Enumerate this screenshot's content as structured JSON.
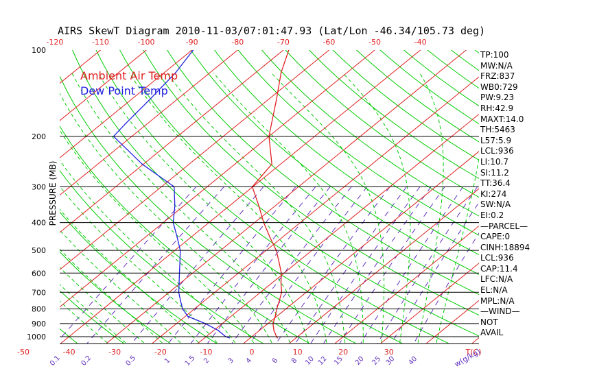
{
  "chart_data": {
    "type": "skewt",
    "title": "AIRS SkewT Diagram 2010-11-03/07:01:47.93 (Lat/Lon -46.34/105.73 deg)",
    "ylabel": "PRESSURE (MB)",
    "x_unit_label": "T(C)",
    "mixing_ratio_unit_label": "w(g/kg)",
    "pressure_ticks": [
      100,
      200,
      300,
      400,
      500,
      600,
      700,
      800,
      900,
      1000
    ],
    "pressure_range": [
      100,
      1050
    ],
    "top_temp_ticks": [
      -120,
      -110,
      -100,
      -90,
      -80,
      -70,
      -60,
      -50,
      -40
    ],
    "bottom_temp_ticks": [
      -50,
      -40,
      -30,
      -20,
      -10,
      0,
      10,
      20,
      30
    ],
    "mixing_ratio_labels": [
      "0.1",
      "0.2",
      "0.5",
      "1",
      "1.5",
      "2",
      "3",
      "4",
      "6",
      "8",
      "10",
      "12",
      "15",
      "20",
      "25",
      "30",
      "40"
    ],
    "legend": [
      {
        "name": "Ambient Air Temp",
        "color": "#e02020"
      },
      {
        "name": "Dew Point Temp",
        "color": "#2020e0"
      }
    ],
    "series": [
      {
        "name": "Ambient Air Temp",
        "color": "#e02020",
        "points": [
          {
            "p": 1010,
            "t": 5.9
          },
          {
            "p": 1000,
            "t": 5.4
          },
          {
            "p": 950,
            "t": 3.1
          },
          {
            "p": 900,
            "t": 1.1
          },
          {
            "p": 850,
            "t": -0.3
          },
          {
            "p": 800,
            "t": -2.0
          },
          {
            "p": 750,
            "t": -3.6
          },
          {
            "p": 700,
            "t": -5.4
          },
          {
            "p": 650,
            "t": -8.0
          },
          {
            "p": 600,
            "t": -10.6
          },
          {
            "p": 550,
            "t": -14.0
          },
          {
            "p": 500,
            "t": -17.8
          },
          {
            "p": 450,
            "t": -22.7
          },
          {
            "p": 400,
            "t": -28.0
          },
          {
            "p": 350,
            "t": -33.5
          },
          {
            "p": 300,
            "t": -40.1
          },
          {
            "p": 250,
            "t": -41.9
          },
          {
            "p": 200,
            "t": -50.0
          },
          {
            "p": 150,
            "t": -58.0
          },
          {
            "p": 120,
            "t": -64.4
          },
          {
            "p": 100,
            "t": -68.8
          }
        ]
      },
      {
        "name": "Dew Point Temp",
        "color": "#2020e0",
        "points": [
          {
            "p": 1010,
            "t": -4.6
          },
          {
            "p": 1000,
            "t": -5.7
          },
          {
            "p": 950,
            "t": -9.1
          },
          {
            "p": 900,
            "t": -13.7
          },
          {
            "p": 850,
            "t": -19.4
          },
          {
            "p": 800,
            "t": -22.6
          },
          {
            "p": 750,
            "t": -25.2
          },
          {
            "p": 700,
            "t": -27.9
          },
          {
            "p": 650,
            "t": -30.3
          },
          {
            "p": 600,
            "t": -32.9
          },
          {
            "p": 550,
            "t": -35.7
          },
          {
            "p": 500,
            "t": -38.8
          },
          {
            "p": 450,
            "t": -43.0
          },
          {
            "p": 400,
            "t": -47.8
          },
          {
            "p": 350,
            "t": -51.9
          },
          {
            "p": 300,
            "t": -57.2
          },
          {
            "p": 250,
            "t": -70.3
          },
          {
            "p": 200,
            "t": -84.0
          },
          {
            "p": 180,
            "t": -84.8
          },
          {
            "p": 150,
            "t": -85.9
          },
          {
            "p": 120,
            "t": -87.5
          },
          {
            "p": 100,
            "t": -89.7
          }
        ]
      }
    ],
    "stats": [
      "TP:100",
      "MW:N/A",
      "FRZ:837",
      "WB0:729",
      "PW:9.23",
      "RH:42.9",
      "MAXT:14.0",
      "TH:5463",
      "L57:5.9",
      "LCL:936",
      "LI:10.7",
      "SI:11.2",
      "TT:36.4",
      "KI:274",
      "SW:N/A",
      "EI:0.2",
      "—PARCEL—",
      "CAPE:0",
      "CINH:18894",
      "LCL:936",
      "CAP:11.4",
      "LFC:N/A",
      "EL:N/A",
      "MPL:N/A",
      "—WIND—",
      "NOT",
      "AVAIL"
    ],
    "colors": {
      "isotherm": "#e02020",
      "dry_adiabat": "#00cc00",
      "moist_adiabat": "#00cc00",
      "mixing_ratio": "#6030c0",
      "isobar": "#000000",
      "tick_label": "#e02020",
      "mixing_ratio_label": "#6030c0"
    }
  }
}
